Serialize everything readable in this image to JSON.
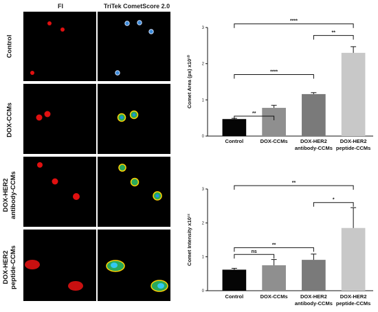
{
  "headers": {
    "fi": "FI",
    "tritek": "TriTek CometScore 2.0"
  },
  "rows": [
    {
      "label": "Control"
    },
    {
      "label": "DOX-CCMs"
    },
    {
      "label": "DOX-HER2\nantibody-CCMs"
    },
    {
      "label": "DOX-HER2\npeptide-CCMs"
    }
  ],
  "colors": {
    "panel_bg": "#000000",
    "fi_cell": "#e01010"
  },
  "chart_data": [
    {
      "type": "bar",
      "categories": [
        "Control",
        "DOX-CCMs",
        "DOX-HER2\nantibody-CCMs",
        "DOX-HER2\npeptide-CCMs"
      ],
      "values": [
        0.47,
        0.78,
        1.16,
        2.3
      ],
      "errors": [
        0.02,
        0.07,
        0.04,
        0.17
      ],
      "colors": [
        "#050505",
        "#8f8f8f",
        "#7a7a7a",
        "#c8c8c8"
      ],
      "ylabel": "Comet Area (px) x10¹⁰",
      "ylim": [
        0,
        3
      ],
      "yticks": [
        0,
        1,
        2,
        3
      ],
      "yticklabels": [
        "0",
        "1",
        "2",
        "3"
      ],
      "significance": [
        {
          "from": 0,
          "to": 1,
          "label": "**",
          "y": 0.55
        },
        {
          "from": 0,
          "to": 2,
          "label": "****",
          "y": 1.7
        },
        {
          "from": 2,
          "to": 3,
          "label": "**",
          "y": 2.78
        },
        {
          "from": 0,
          "to": 3,
          "label": "****",
          "y": 3.1
        }
      ]
    },
    {
      "type": "bar",
      "categories": [
        "Control",
        "DOX-CCMs",
        "DOX-HER2\nantibody-CCMs",
        "DOX-HER2\npeptide-CCMs"
      ],
      "values": [
        0.62,
        0.75,
        0.91,
        1.85
      ],
      "errors": [
        0.04,
        0.17,
        0.17,
        0.6
      ],
      "colors": [
        "#050505",
        "#8f8f8f",
        "#7a7a7a",
        "#c8c8c8"
      ],
      "ylabel": "Comet Intensity x10¹²",
      "ylim": [
        0,
        3
      ],
      "yticks": [
        0,
        1,
        2,
        3
      ],
      "yticklabels": [
        "0",
        "1",
        "2",
        "3"
      ],
      "significance": [
        {
          "from": 0,
          "to": 1,
          "label": "ns",
          "y": 1.07
        },
        {
          "from": 0,
          "to": 2,
          "label": "**",
          "y": 1.27
        },
        {
          "from": 2,
          "to": 3,
          "label": "*",
          "y": 2.6
        },
        {
          "from": 0,
          "to": 3,
          "label": "**",
          "y": 3.1
        }
      ]
    }
  ]
}
